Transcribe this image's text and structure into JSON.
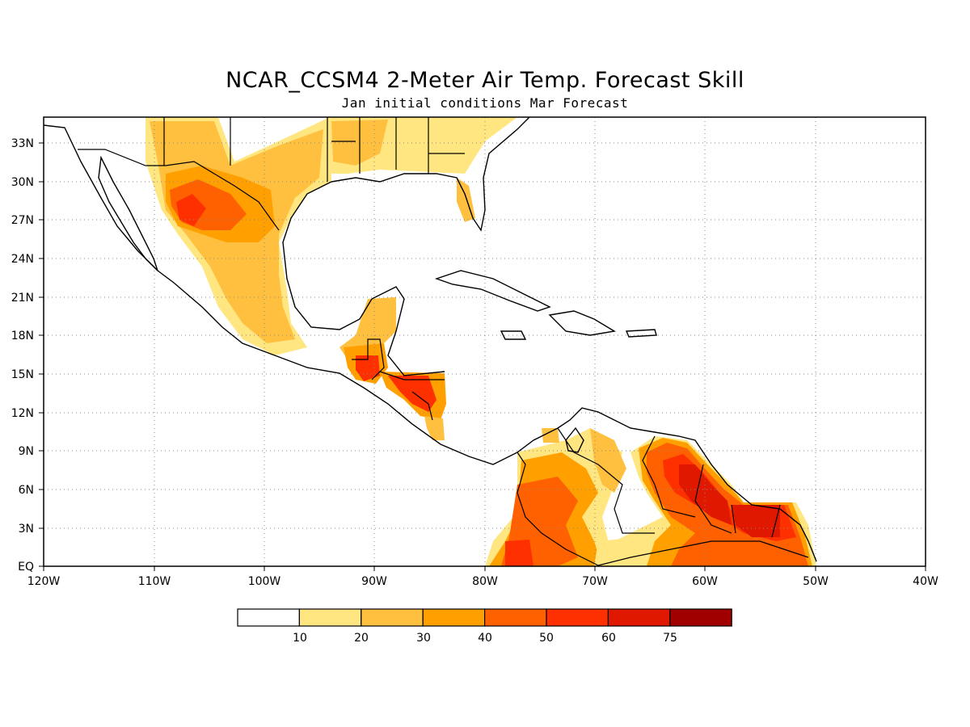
{
  "title": "NCAR_CCSM4 2-Meter Air Temp. Forecast Skill",
  "subtitle": "Jan initial conditions  Mar Forecast",
  "map": {
    "lon_range": [
      -120,
      -40
    ],
    "lat_range": [
      0,
      35
    ],
    "grid": "dotted"
  },
  "lat_labels": [
    "EQ",
    "3N",
    "6N",
    "9N",
    "12N",
    "15N",
    "18N",
    "21N",
    "24N",
    "27N",
    "30N",
    "33N"
  ],
  "lon_labels": [
    "120W",
    "110W",
    "100W",
    "90W",
    "80W",
    "70W",
    "60W",
    "50W",
    "40W"
  ],
  "colorbar": {
    "labels": [
      "10",
      "20",
      "30",
      "40",
      "50",
      "60",
      "75"
    ],
    "colors": [
      "#ffffff",
      "#ffe680",
      "#ffc040",
      "#ffa000",
      "#ff6000",
      "#ff3000",
      "#e01800",
      "#a00000"
    ]
  },
  "skill_regions_colors": {
    "c1": "#ffe680",
    "c2": "#ffc040",
    "c3": "#ffa000",
    "c4": "#ff6000",
    "c5": "#ff3000",
    "c6": "#e01800"
  }
}
